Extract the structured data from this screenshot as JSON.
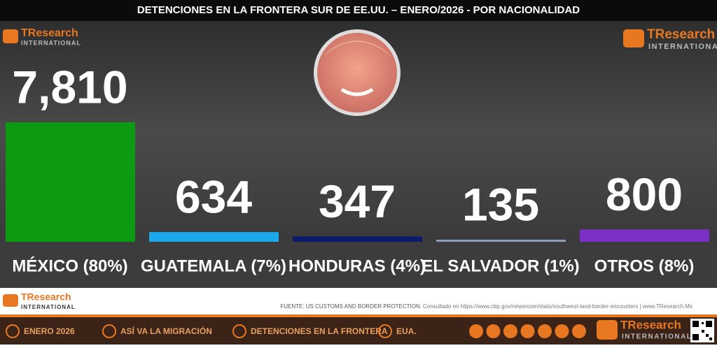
{
  "chart_data": {
    "type": "bar",
    "title": "DETENCIONES EN LA FRONTERA SUR DE EE.UU. – ENERO/2026 - POR NACIONALIDAD",
    "categories": [
      "MÉXICO (80%)",
      "GUATEMALA (7%)",
      "HONDURAS (4%)",
      "EL SALVADOR (1%)",
      "OTROS (8%)"
    ],
    "values": [
      7810,
      634,
      347,
      135,
      800
    ],
    "value_labels": [
      "7,810",
      "634",
      "347",
      "135",
      "800"
    ],
    "colors": [
      "#0b9a12",
      "#1ea8ec",
      "#0c1a6b",
      "#8d9fc0",
      "#7b2fc4"
    ]
  },
  "logo": {
    "name": "TResearch",
    "sub": "INTERNATIONAL"
  },
  "source": {
    "label": "FUENTE: US CUSTOMS AND BORDER PROTECTION.",
    "consult": "Consultado en https://www.cbp.gov/newsroom/stats/southwest-land-border-encounters  |  www.TResearch.Mx"
  },
  "footer": {
    "items": [
      "ENERO 2026",
      "ASÍ VA LA MIGRACIÓN",
      "DETENCIONES EN LA FRONTERA",
      "EUA."
    ]
  }
}
